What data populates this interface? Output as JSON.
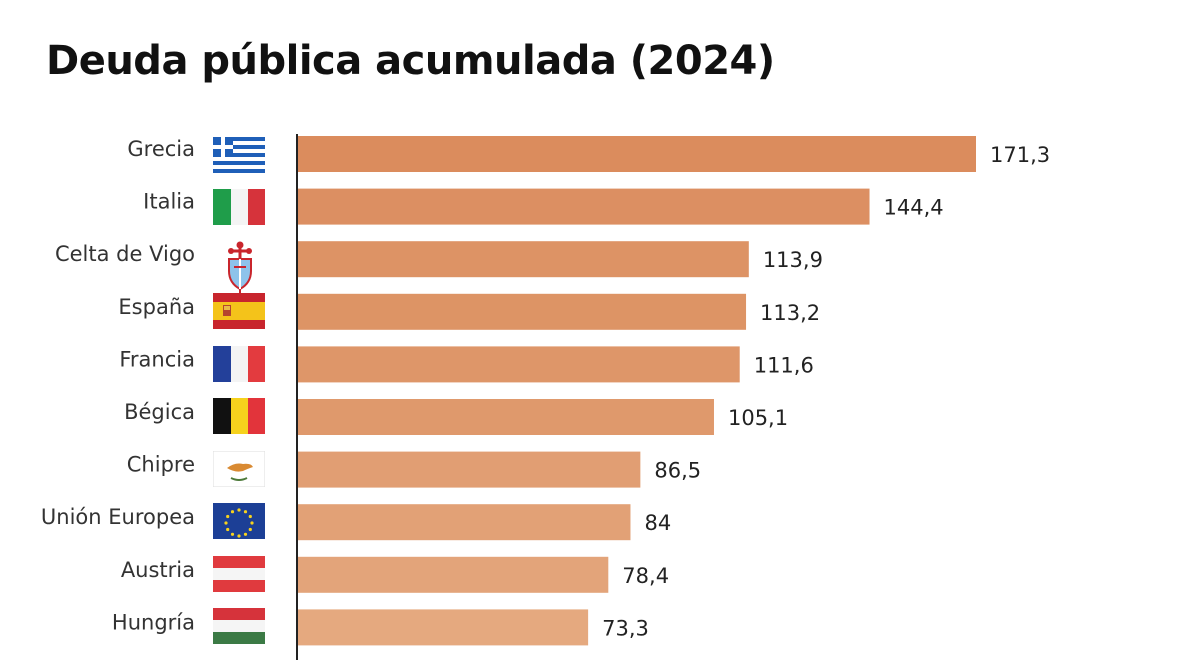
{
  "chart_data": {
    "type": "bar",
    "orientation": "horizontal",
    "title": "Deuda pública acumulada (2024)",
    "categories": [
      "Grecia",
      "Italia",
      "Celta de Vigo",
      "España",
      "Francia",
      "Bégica",
      "Chipre",
      "Unión Europea",
      "Austria",
      "Hungría"
    ],
    "values": [
      171.3,
      144.4,
      113.9,
      113.2,
      111.6,
      105.1,
      86.5,
      84,
      78.4,
      73.3
    ],
    "value_labels": [
      "171,3",
      "144,4",
      "113,9",
      "113,2",
      "111,6",
      "105,1",
      "86,5",
      "84",
      "78,4",
      "73,3"
    ],
    "icons": [
      "greece-flag-icon",
      "italy-flag-icon",
      "celta-crest-icon",
      "spain-flag-icon",
      "france-flag-icon",
      "belgium-flag-icon",
      "cyprus-flag-icon",
      "eu-flag-icon",
      "austria-flag-icon",
      "hungary-flag-icon"
    ],
    "xlim": [
      0,
      180
    ],
    "xlabel": "",
    "ylabel": "",
    "grid": false,
    "bar_colors": [
      "#db8c5d",
      "#dc8f62",
      "#dd9365",
      "#dd9465",
      "#de9669",
      "#df996c",
      "#e19e73",
      "#e2a176",
      "#e3a47a",
      "#e5a97f"
    ]
  }
}
